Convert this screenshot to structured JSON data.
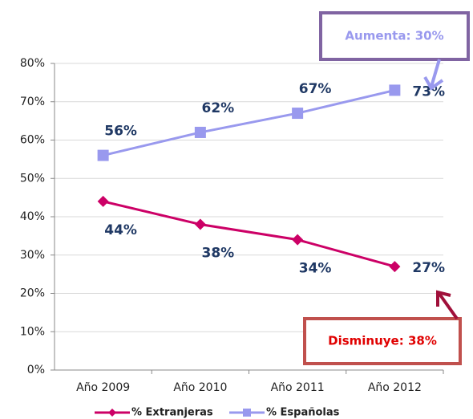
{
  "chart_data": {
    "type": "line",
    "categories": [
      "Año 2009",
      "Año 2010",
      "Año 2011",
      "Año 2012"
    ],
    "series": [
      {
        "name": "% Extranjeras",
        "color": "#cc0066",
        "marker": "diamond",
        "values": [
          44,
          38,
          34,
          27
        ],
        "value_labels": [
          "44%",
          "38%",
          "34%",
          "27%"
        ]
      },
      {
        "name": "% Españolas",
        "color": "#9999ee",
        "marker": "square",
        "values": [
          56,
          62,
          67,
          73
        ],
        "value_labels": [
          "56%",
          "62%",
          "67%",
          "73%"
        ]
      }
    ],
    "ylim": [
      0,
      80
    ],
    "yticks": [
      {
        "value": 0,
        "label": "0%"
      },
      {
        "value": 10,
        "label": "10%"
      },
      {
        "value": 20,
        "label": "20%"
      },
      {
        "value": 30,
        "label": "30%"
      },
      {
        "value": 40,
        "label": "40%"
      },
      {
        "value": 50,
        "label": "50%"
      },
      {
        "value": 60,
        "label": "60%"
      },
      {
        "value": 70,
        "label": "70%"
      },
      {
        "value": 80,
        "label": "80%"
      }
    ],
    "grid": true,
    "legend": "bottom",
    "annotations": [
      {
        "text": "Aumenta: 30%",
        "color": "#9999ee",
        "border": "#8064a2"
      },
      {
        "text": "Disminuye: 38%",
        "color": "#e00000",
        "border": "#c0504d"
      }
    ]
  }
}
